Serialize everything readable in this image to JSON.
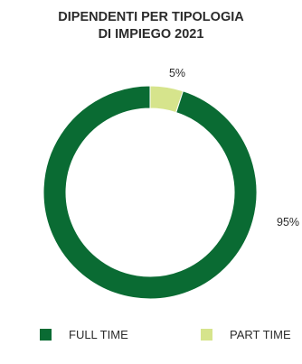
{
  "chart_data": {
    "type": "pie",
    "title_lines": [
      "DIPENDENTI PER TIPOLOGIA",
      "DI IMPIEGO 2021"
    ],
    "categories": [
      "FULL TIME",
      "PART TIME"
    ],
    "values": [
      95,
      5
    ],
    "data_labels": [
      "95%",
      "5%"
    ],
    "colors": [
      "#0a6b33",
      "#d6e48c"
    ],
    "donut": true,
    "legend_position": "bottom"
  }
}
